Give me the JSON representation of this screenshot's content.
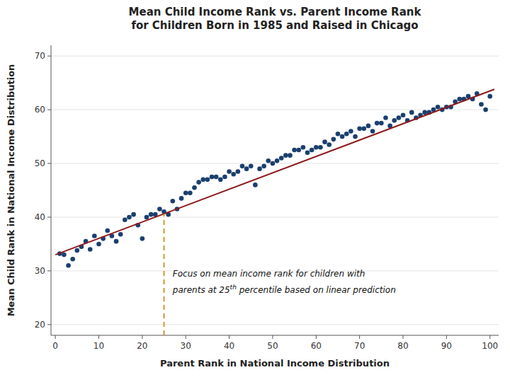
{
  "chart_data": {
    "type": "scatter",
    "title": "Mean Child Income Rank vs. Parent Income Rank\nfor Children Born in 1985 and Raised in Chicago",
    "x_label": "Parent Rank in National Income Distribution",
    "y_label": "Mean Child Rank in National Income Distribution",
    "xlim": [
      -1,
      102
    ],
    "ylim": [
      18,
      72
    ],
    "xticks": [
      0,
      10,
      20,
      30,
      40,
      50,
      60,
      70,
      80,
      90,
      100
    ],
    "yticks": [
      20,
      30,
      40,
      50,
      60,
      70
    ],
    "grid": "y",
    "series": [
      {
        "type": "scatter",
        "marker": "circle",
        "color": "#1a3f6f",
        "x": [
          1,
          2,
          3,
          4,
          5,
          6,
          7,
          8,
          9,
          10,
          11,
          12,
          13,
          14,
          15,
          16,
          17,
          18,
          19,
          20,
          21,
          22,
          23,
          24,
          25,
          26,
          27,
          28,
          29,
          30,
          31,
          32,
          33,
          34,
          35,
          36,
          37,
          38,
          39,
          40,
          41,
          42,
          43,
          44,
          45,
          46,
          47,
          48,
          49,
          50,
          51,
          52,
          53,
          54,
          55,
          56,
          57,
          58,
          59,
          60,
          61,
          62,
          63,
          64,
          65,
          66,
          67,
          68,
          69,
          70,
          71,
          72,
          73,
          74,
          75,
          76,
          77,
          78,
          79,
          80,
          81,
          82,
          83,
          84,
          85,
          86,
          87,
          88,
          89,
          90,
          91,
          92,
          93,
          94,
          95,
          96,
          97,
          98,
          99,
          100
        ],
        "values": [
          33.2,
          33.0,
          31.0,
          32.2,
          33.8,
          34.5,
          35.5,
          34.0,
          36.5,
          35.0,
          36.0,
          37.5,
          36.5,
          35.5,
          36.8,
          39.5,
          40.0,
          40.5,
          38.5,
          36.0,
          40.0,
          40.5,
          40.5,
          41.5,
          41.0,
          40.5,
          43.0,
          41.5,
          43.5,
          44.5,
          44.5,
          45.5,
          46.5,
          47.0,
          47.0,
          47.5,
          47.5,
          47.0,
          47.5,
          48.5,
          48.0,
          48.5,
          49.5,
          49.0,
          49.5,
          46.0,
          49.0,
          49.5,
          50.5,
          50.0,
          50.5,
          51.0,
          51.5,
          51.5,
          52.5,
          52.5,
          53.0,
          52.0,
          52.5,
          53.0,
          53.0,
          54.0,
          53.5,
          54.5,
          55.5,
          55.0,
          55.5,
          56.0,
          55.0,
          56.5,
          56.5,
          57.0,
          56.0,
          57.5,
          57.5,
          58.5,
          57.0,
          58.0,
          58.5,
          59.0,
          58.0,
          59.5,
          58.5,
          59.0,
          59.5,
          59.5,
          60.0,
          60.5,
          60.0,
          60.5,
          60.5,
          61.5,
          62.0,
          62.0,
          62.5,
          62.0,
          63.0,
          61.0,
          60.0,
          62.5
        ]
      },
      {
        "type": "line",
        "line_style": "solid",
        "color": "#8b1a1a",
        "x": [
          0,
          101
        ],
        "values": [
          33.0,
          63.805
        ]
      },
      {
        "type": "line",
        "line_style": "dashed",
        "color": "#d4922a",
        "x": [
          25,
          25
        ],
        "values": [
          18,
          40.625
        ]
      }
    ],
    "annotations": [
      {
        "text": "Focus on mean income rank for children with",
        "x": 27,
        "y": 28.5
      },
      {
        "text": [
          "parents at 25",
          "th",
          " percentile based on linear prediction"
        ],
        "x": 27,
        "y": 25.5
      }
    ]
  }
}
